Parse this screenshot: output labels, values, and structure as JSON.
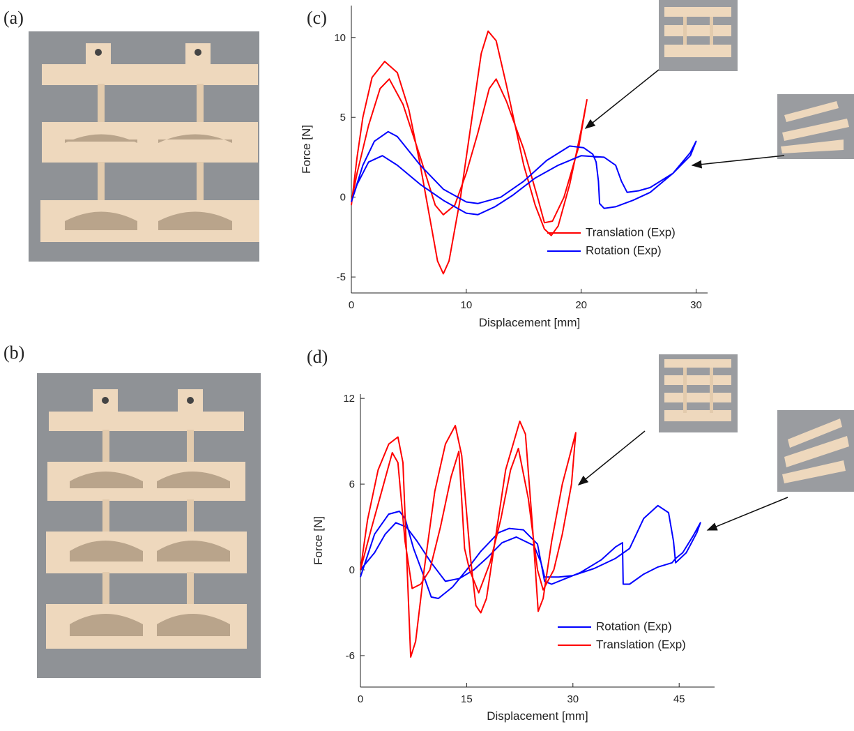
{
  "photo_labels": [
    "(a)",
    "(b)"
  ],
  "chart_data": [
    {
      "type": "line",
      "panel_label": "(c)",
      "xlabel": "Displacement [mm]",
      "ylabel": "Force [N]",
      "xlim": [
        0,
        31
      ],
      "ylim": [
        -6,
        12
      ],
      "xticks": [
        0,
        10,
        20,
        30
      ],
      "yticks": [
        -5,
        0,
        5,
        10
      ],
      "legend": "lower right",
      "series": [
        {
          "name": "Translation (Exp)",
          "color": "#ff0000",
          "x": [
            0,
            0.5,
            1,
            1.8,
            2.9,
            4,
            5,
            6,
            7,
            7.5,
            8,
            8.5,
            9.5,
            10.5,
            11.3,
            11.9,
            12.6,
            13.5,
            15,
            16,
            16.8,
            17.4,
            18,
            19,
            20,
            20.5,
            19.8,
            18.5,
            17.5,
            16.8,
            16.2,
            15,
            13.5,
            12.6,
            12,
            11,
            10,
            9,
            8,
            7.3,
            6,
            4.5,
            3.3,
            2.5,
            1.5,
            0.5,
            0
          ],
          "values": [
            -0.5,
            2.5,
            5,
            7.5,
            8.5,
            7.8,
            5.5,
            2,
            -2,
            -4,
            -4.8,
            -4,
            0,
            5,
            9,
            10.4,
            9.8,
            7,
            2,
            -0.5,
            -2,
            -2.4,
            -1.8,
            0.8,
            4.2,
            6.1,
            3.2,
            0,
            -1.5,
            -1.6,
            0,
            3,
            6,
            7.4,
            6.8,
            4,
            1.5,
            -0.5,
            -1.1,
            -0.5,
            2.5,
            5.8,
            7.4,
            6.8,
            4.5,
            1.5,
            -0.3
          ]
        },
        {
          "name": "Rotation (Exp)",
          "color": "#0000ff",
          "x": [
            0,
            1,
            2,
            3.2,
            4,
            6,
            8,
            10,
            11,
            13,
            15,
            17,
            19,
            20.2,
            21,
            21.3,
            21.5,
            21.6,
            22,
            23,
            24.5,
            26,
            28,
            29.5,
            30,
            29.5,
            28,
            26,
            25,
            24,
            23.5,
            23,
            22,
            20,
            18,
            16,
            14,
            12.5,
            11,
            10,
            8,
            6,
            4,
            2.7,
            1.5,
            0.5,
            0
          ],
          "values": [
            -0.3,
            2,
            3.5,
            4.1,
            3.8,
            2,
            0.5,
            -0.3,
            -0.4,
            0,
            1,
            2.3,
            3.2,
            3.1,
            2.7,
            2.2,
            1,
            -0.4,
            -0.7,
            -0.6,
            -0.2,
            0.3,
            1.5,
            2.8,
            3.5,
            2.6,
            1.5,
            0.6,
            0.4,
            0.3,
            1,
            2,
            2.5,
            2.6,
            2,
            1.2,
            0.1,
            -0.6,
            -1.1,
            -1,
            -0.2,
            0.8,
            2,
            2.6,
            2.2,
            0.8,
            -0.3
          ]
        }
      ]
    },
    {
      "type": "line",
      "panel_label": "(d)",
      "xlabel": "Displacement [mm]",
      "ylabel": "Force [N]",
      "xlim": [
        0,
        50
      ],
      "ylim": [
        -8.2,
        12.3
      ],
      "xticks": [
        0,
        15,
        30,
        45
      ],
      "yticks": [
        -6,
        0,
        6,
        12
      ],
      "legend": "lower right",
      "series": [
        {
          "name": "Rotation (Exp)",
          "color": "#0000ff",
          "x": [
            0,
            2,
            4,
            5.5,
            6.3,
            7.5,
            9,
            10,
            11,
            13,
            15,
            17,
            19.5,
            21,
            23,
            25,
            25.5,
            26,
            27,
            29,
            31,
            34,
            36,
            37,
            37.1,
            38,
            40,
            42,
            44,
            44.5,
            45.5,
            47,
            48,
            47.5,
            46,
            44.5,
            44.2,
            43.5,
            42,
            40,
            38,
            36,
            33,
            30,
            28,
            26,
            25.5,
            24.5,
            22,
            20,
            18,
            16,
            14,
            12,
            10,
            8,
            6.5,
            5,
            3.5,
            2,
            0
          ],
          "values": [
            -0.5,
            2.5,
            3.9,
            4.1,
            3.6,
            1.5,
            -0.5,
            -1.9,
            -2,
            -1.2,
            0,
            1.3,
            2.6,
            2.9,
            2.8,
            1.8,
            0.5,
            -0.8,
            -1,
            -0.6,
            -0.2,
            0.7,
            1.6,
            1.9,
            -1,
            -1,
            -0.3,
            0.2,
            0.5,
            0.8,
            1.2,
            2.4,
            3.3,
            2.6,
            1.2,
            0.5,
            2,
            4,
            4.5,
            3.6,
            1.5,
            0.8,
            0.1,
            -0.4,
            -0.5,
            -0.5,
            0.5,
            1.7,
            2.3,
            1.9,
            0.9,
            0,
            -0.6,
            -0.8,
            0.5,
            2,
            3,
            3.3,
            2.5,
            1.2,
            0
          ]
        },
        {
          "name": "Translation (Exp)",
          "color": "#ff0000",
          "x": [
            0,
            1,
            2.5,
            4,
            5.3,
            6,
            6.6,
            7.1,
            7.8,
            9,
            10.5,
            12,
            13.4,
            14.3,
            15.5,
            16.3,
            17,
            17.8,
            19,
            20.5,
            22.5,
            23.3,
            24.3,
            25.1,
            25.8,
            27,
            28.5,
            30.4,
            29.8,
            28.5,
            27.3,
            25.8,
            25,
            23.7,
            22.3,
            21.2,
            19.8,
            18.3,
            16.7,
            15.4,
            14.7,
            13.9,
            12.8,
            11.3,
            9.8,
            8.5,
            7.3,
            6.3,
            5.3,
            4.5,
            3,
            1.5,
            0
          ],
          "values": [
            0,
            3.5,
            7,
            8.8,
            9.3,
            7.5,
            0,
            -6.1,
            -5,
            0,
            5.5,
            8.8,
            10.1,
            8,
            1,
            -2.5,
            -3,
            -2,
            2,
            7,
            10.4,
            9.5,
            3,
            -2.9,
            -2,
            2,
            6,
            9.6,
            6,
            2.5,
            0,
            -1.4,
            0,
            5,
            8.5,
            7,
            3.5,
            0.5,
            -1.6,
            0,
            1.5,
            8.3,
            6.5,
            3,
            0,
            -1,
            -1.3,
            2,
            7.5,
            8.2,
            5.5,
            2.8,
            0
          ]
        }
      ]
    }
  ]
}
